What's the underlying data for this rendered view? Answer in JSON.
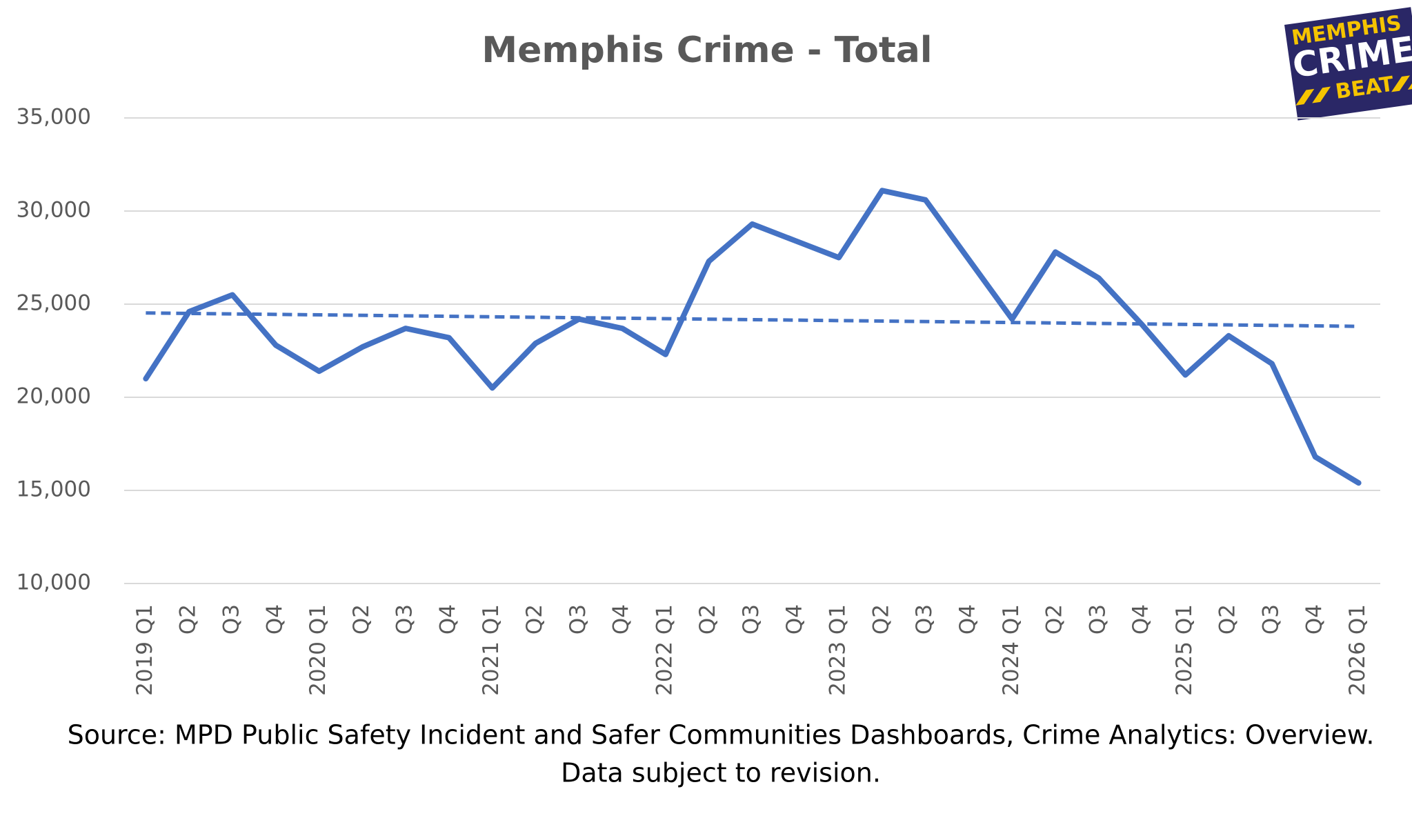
{
  "chart_data": {
    "type": "line",
    "title": "Memphis Crime - Total",
    "categories": [
      "2019 Q1",
      "Q2",
      "Q3",
      "Q4",
      "2020 Q1",
      "Q2",
      "Q3",
      "Q4",
      "2021 Q1",
      "Q2",
      "Q3",
      "Q4",
      "2022 Q1",
      "Q2",
      "Q3",
      "Q4",
      "2023 Q1",
      "Q2",
      "Q3",
      "Q4",
      "2024 Q1",
      "Q2",
      "Q3",
      "Q4",
      "2025 Q1",
      "Q2",
      "Q3",
      "Q4",
      "2026 Q1"
    ],
    "values": [
      21000,
      24600,
      25500,
      22800,
      21400,
      22700,
      23700,
      23200,
      20500,
      22900,
      24200,
      23700,
      22300,
      27300,
      29300,
      28400,
      27500,
      31100,
      30600,
      27400,
      24200,
      27800,
      26400,
      23900,
      21200,
      23300,
      21800,
      16800,
      15400
    ],
    "color": "#4472c4",
    "trendline": true,
    "ylim": [
      10000,
      35000
    ],
    "yticks": [
      {
        "value": 10000,
        "label": "10,000"
      },
      {
        "value": 15000,
        "label": "15,000"
      },
      {
        "value": 20000,
        "label": "20,000"
      },
      {
        "value": 25000,
        "label": "25,000"
      },
      {
        "value": 30000,
        "label": "30,000"
      },
      {
        "value": 35000,
        "label": "35,000"
      }
    ],
    "grid": true,
    "source": [
      "Source: MPD Public Safety Incident and Safer Communities Dashboards, Crime Analytics: Overview.",
      "Data subject to revision."
    ]
  },
  "logo": {
    "line1": "MEMPHIS",
    "line2": "CRIME",
    "line3": "BEAT"
  }
}
